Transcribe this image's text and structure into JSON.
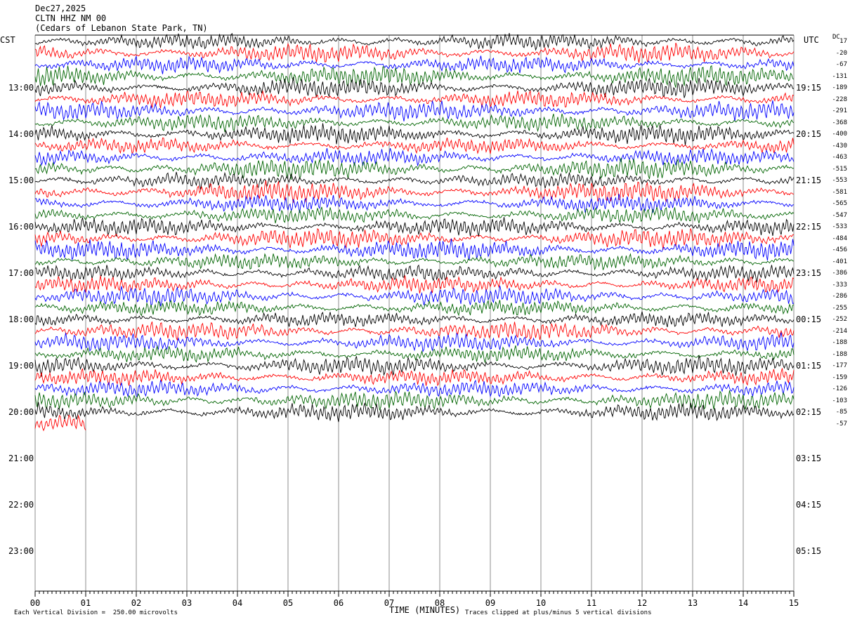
{
  "header": {
    "date": "Dec27,2025",
    "station": "CLTN HHZ NM 00",
    "location": "(Cedars of Lebanon State Park, TN)"
  },
  "left_zone": "CST",
  "right_zone": "UTC",
  "dc_label": "DC",
  "footer": {
    "scale_text": "Each Vertical Division =  250.00 microvolts",
    "x_title": "TIME (MINUTES)",
    "clip_text": "Traces clipped at plus/minus 5 vertical divisions"
  },
  "chart_data": {
    "type": "line",
    "title": "",
    "xlabel": "TIME (MINUTES)",
    "ylabel": "",
    "xlim": [
      0,
      15
    ],
    "x_ticks": [
      "00",
      "01",
      "02",
      "03",
      "04",
      "05",
      "06",
      "07",
      "08",
      "09",
      "10",
      "11",
      "12",
      "13",
      "14",
      "15"
    ],
    "grid": "vertical lines at each minute",
    "hour_labels_cst": [
      "13:00",
      "14:00",
      "15:00",
      "16:00",
      "17:00",
      "18:00",
      "19:00",
      "20:00",
      "21:00",
      "22:00",
      "23:00"
    ],
    "hour_labels_utc": [
      "19:15",
      "20:15",
      "21:15",
      "22:15",
      "23:15",
      "00:15",
      "01:15",
      "02:15",
      "03:15",
      "04:15",
      "05:15"
    ],
    "traces_per_hour": 4,
    "trace_colors": [
      "#000000",
      "#ff0000",
      "#0000ff",
      "#006400"
    ],
    "trace_count": 34,
    "last_trace_end_minute": 1,
    "dc_offsets": [
      "17",
      "-20",
      "-67",
      "-131",
      "-189",
      "-228",
      "-291",
      "-368",
      "-400",
      "-430",
      "-463",
      "-515",
      "-553",
      "-581",
      "-565",
      "-547",
      "-533",
      "-484",
      "-456",
      "-401",
      "-386",
      "-333",
      "-286",
      "-255",
      "-252",
      "-214",
      "-188",
      "-188",
      "-177",
      "-159",
      "-126",
      "-103",
      "-85",
      "-57"
    ],
    "scale_microvolts_per_division": 250.0,
    "clip_divisions": 5
  }
}
